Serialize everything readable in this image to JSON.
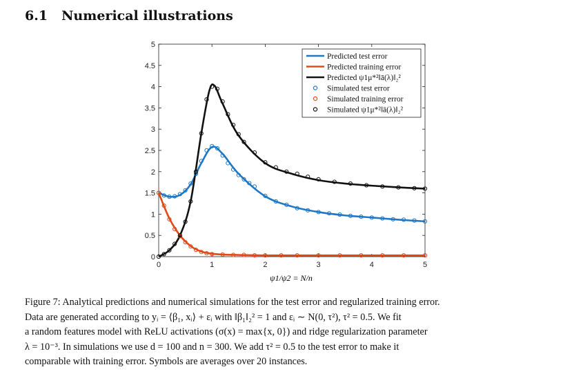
{
  "section": {
    "number": "6.1",
    "title": "Numerical illustrations"
  },
  "colors": {
    "test": "#1f77c4",
    "train": "#e04a18",
    "norm": "#111111"
  },
  "chart_data": {
    "type": "line",
    "xlabel": "ψ1/ψ2 = N/n",
    "ylabel": "",
    "xlim": [
      0,
      5
    ],
    "ylim": [
      0,
      5
    ],
    "xticks": [
      "0",
      "1",
      "2",
      "3",
      "4",
      "5"
    ],
    "yticks": [
      "0",
      "0.5",
      "1",
      "1.5",
      "2",
      "2.5",
      "3",
      "3.5",
      "4",
      "4.5",
      "5"
    ],
    "legend_position": "top-right",
    "series": [
      {
        "name": "Predicted test error",
        "kind": "line",
        "color": "#1f77c4",
        "x": [
          0,
          0.2,
          0.4,
          0.6,
          0.8,
          1.0,
          1.2,
          1.5,
          2.0,
          2.5,
          3.0,
          3.5,
          4.0,
          4.5,
          5.0
        ],
        "values": [
          1.5,
          1.41,
          1.45,
          1.7,
          2.2,
          2.58,
          2.42,
          1.95,
          1.42,
          1.18,
          1.05,
          0.97,
          0.92,
          0.87,
          0.83
        ]
      },
      {
        "name": "Predicted training error",
        "kind": "line",
        "color": "#e04a18",
        "x": [
          0,
          0.2,
          0.4,
          0.6,
          0.8,
          1.0,
          1.2,
          1.5,
          2.0,
          3.0,
          4.0,
          5.0
        ],
        "values": [
          1.5,
          0.9,
          0.5,
          0.25,
          0.12,
          0.07,
          0.05,
          0.04,
          0.03,
          0.03,
          0.03,
          0.03
        ]
      },
      {
        "name": "Predicted ψ1μ*²‖ā(λ)‖₂²",
        "kind": "line",
        "color": "#111111",
        "x": [
          0,
          0.2,
          0.4,
          0.6,
          0.8,
          0.95,
          1.05,
          1.2,
          1.5,
          2.0,
          2.5,
          3.0,
          3.5,
          4.0,
          4.5,
          5.0
        ],
        "values": [
          0.0,
          0.15,
          0.5,
          1.3,
          2.9,
          3.9,
          4.02,
          3.6,
          2.85,
          2.2,
          1.95,
          1.8,
          1.72,
          1.67,
          1.63,
          1.6
        ]
      },
      {
        "name": "Simulated test error",
        "kind": "markers",
        "color": "#1f77c4",
        "x": [
          0,
          0.1,
          0.2,
          0.3,
          0.4,
          0.5,
          0.6,
          0.7,
          0.8,
          0.9,
          1.0,
          1.1,
          1.2,
          1.3,
          1.4,
          1.5,
          1.6,
          1.7,
          1.8,
          2.0,
          2.2,
          2.4,
          2.6,
          2.8,
          3.0,
          3.2,
          3.4,
          3.6,
          3.8,
          4.0,
          4.2,
          4.4,
          4.6,
          4.8,
          5.0
        ],
        "values": [
          1.5,
          1.44,
          1.41,
          1.42,
          1.47,
          1.56,
          1.72,
          1.95,
          2.25,
          2.5,
          2.6,
          2.55,
          2.38,
          2.2,
          2.05,
          1.92,
          1.82,
          1.73,
          1.65,
          1.43,
          1.3,
          1.22,
          1.14,
          1.09,
          1.05,
          1.02,
          0.99,
          0.96,
          0.94,
          0.92,
          0.9,
          0.88,
          0.87,
          0.85,
          0.83
        ]
      },
      {
        "name": "Simulated training error",
        "kind": "markers",
        "color": "#e04a18",
        "x": [
          0,
          0.1,
          0.2,
          0.3,
          0.4,
          0.5,
          0.6,
          0.7,
          0.8,
          0.9,
          1.0,
          1.2,
          1.4,
          1.6,
          1.8,
          2.0,
          2.3,
          2.6,
          3.0,
          3.4,
          3.8,
          4.2,
          4.6,
          5.0
        ],
        "values": [
          1.5,
          1.2,
          0.88,
          0.65,
          0.48,
          0.34,
          0.24,
          0.16,
          0.11,
          0.08,
          0.06,
          0.05,
          0.04,
          0.04,
          0.03,
          0.03,
          0.03,
          0.03,
          0.03,
          0.03,
          0.03,
          0.03,
          0.03,
          0.03
        ]
      },
      {
        "name": "Simulated ψ1μ*²‖ā(λ)‖₂²",
        "kind": "markers",
        "color": "#111111",
        "x": [
          0,
          0.1,
          0.2,
          0.3,
          0.4,
          0.5,
          0.6,
          0.7,
          0.8,
          0.9,
          1.0,
          1.1,
          1.2,
          1.3,
          1.4,
          1.5,
          1.6,
          1.8,
          2.0,
          2.2,
          2.4,
          2.6,
          2.8,
          3.0,
          3.3,
          3.6,
          3.9,
          4.2,
          4.5,
          4.8,
          5.0
        ],
        "values": [
          0.0,
          0.06,
          0.15,
          0.3,
          0.5,
          0.82,
          1.3,
          2.0,
          2.9,
          3.7,
          4.0,
          3.95,
          3.65,
          3.35,
          3.1,
          2.88,
          2.7,
          2.45,
          2.22,
          2.1,
          2.0,
          1.95,
          1.88,
          1.82,
          1.76,
          1.72,
          1.68,
          1.65,
          1.63,
          1.61,
          1.6
        ]
      }
    ]
  },
  "caption": {
    "line1": "Figure 7: Analytical predictions and numerical simulations for the test error and regularized training error.",
    "line2": "Data are generated according to yᵢ = ⟨β₁, xᵢ⟩ + εᵢ with ‖β₁‖₂² = 1 and εᵢ ∼ N(0, τ²), τ² = 0.5. We fit",
    "line3": "a random features model with ReLU activations (σ(x) = max{x, 0}) and ridge regularization parameter",
    "line4": "λ = 10⁻³. In simulations we use d = 100 and n = 300. We add τ² = 0.5 to the test error to make it",
    "line5": "comparable with training error. Symbols are averages over 20 instances."
  }
}
